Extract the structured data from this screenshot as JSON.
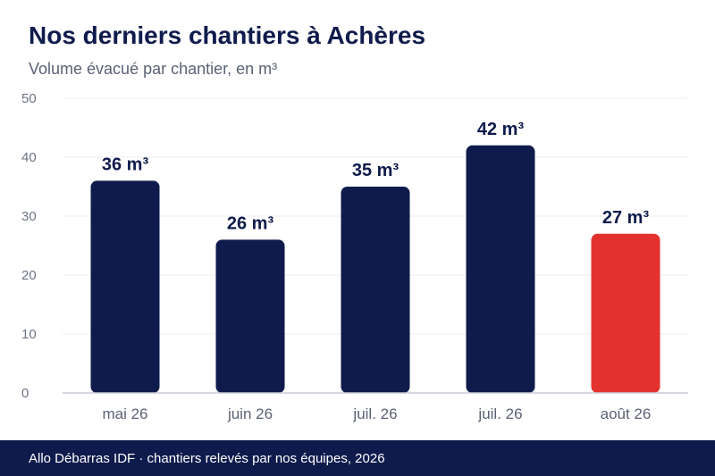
{
  "title": "Nos derniers chantiers à Achères",
  "subtitle": "Volume évacué par chantier, en m³",
  "footer": "Allo Débarras IDF · chantiers relevés par nos équipes, 2026",
  "colors": {
    "primary": "#0f1b4c",
    "highlight": "#e3312e"
  },
  "chart_data": {
    "type": "bar",
    "categories": [
      "mai 26",
      "juin 26",
      "juil. 26",
      "juil. 26",
      "août 26"
    ],
    "values": [
      36,
      26,
      35,
      42,
      27
    ],
    "value_labels": [
      "36 m³",
      "26 m³",
      "35 m³",
      "42 m³",
      "27 m³"
    ],
    "highlight_index": 4,
    "ylim": [
      0,
      50
    ],
    "yticks": [
      0,
      10,
      20,
      30,
      40,
      50
    ],
    "grid": true,
    "legend": "none"
  }
}
